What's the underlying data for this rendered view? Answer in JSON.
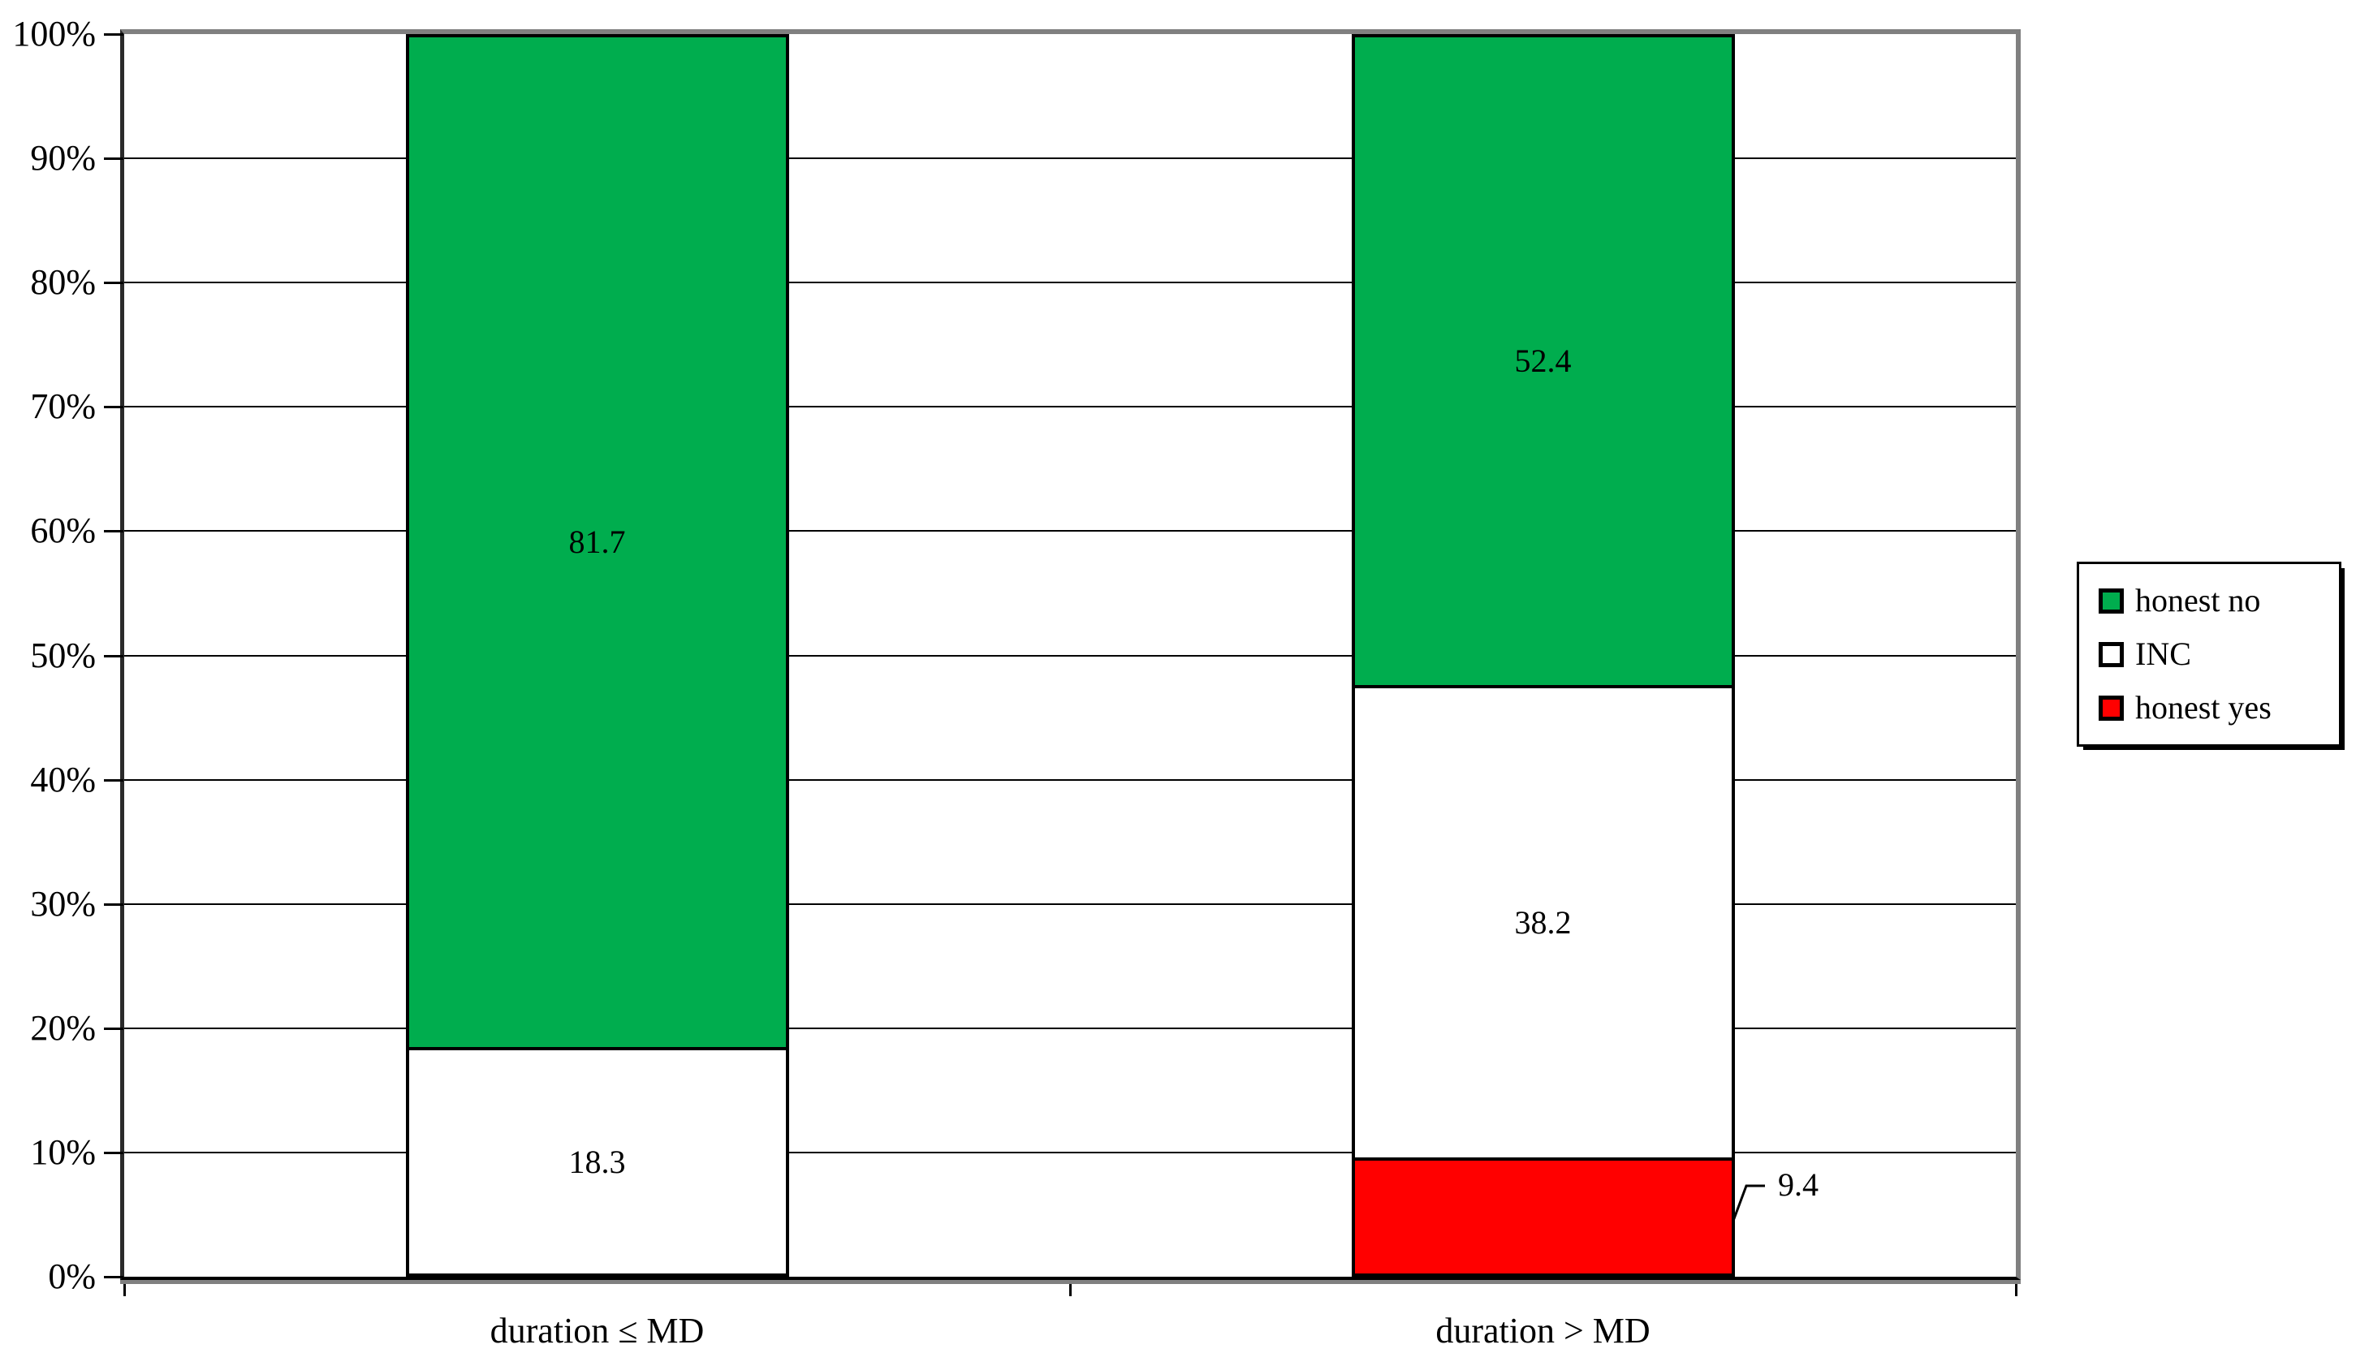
{
  "chart_data": {
    "type": "bar",
    "subtype": "100% stacked column",
    "categories": [
      "duration ≤ MD",
      "duration > MD"
    ],
    "series": [
      {
        "name": "honest no",
        "color": "#00AD4E",
        "values": [
          81.7,
          52.4
        ],
        "data_labels": [
          "81.7",
          "52.4"
        ]
      },
      {
        "name": "INC",
        "color": "#FFFFFF",
        "values": [
          18.3,
          38.2
        ],
        "data_labels": [
          "18.3",
          "38.2"
        ]
      },
      {
        "name": "honest yes",
        "color": "#FF0000",
        "values": [
          0,
          9.4
        ],
        "data_labels": [
          null,
          null
        ]
      }
    ],
    "stacking_order_bottom_to_top": [
      "honest yes",
      "INC",
      "honest no"
    ],
    "y_axis": {
      "min": 0,
      "max": 100,
      "step": 10,
      "grid": true,
      "tick_labels": [
        "0%",
        "10%",
        "20%",
        "30%",
        "40%",
        "50%",
        "60%",
        "70%",
        "80%",
        "90%",
        "100%"
      ]
    },
    "x_axis": {
      "tick_marks_between_categories": true
    },
    "legend": {
      "position": "right",
      "entries": [
        "honest no",
        "INC",
        "honest yes"
      ]
    },
    "callout": {
      "text": "9.4",
      "series": "honest yes",
      "category": "duration > MD",
      "placement": "outside-right"
    }
  },
  "colors": {
    "background": "#FFFFFF",
    "gridline": "#000000",
    "plot_border_gray": "#808080",
    "axis_black": "#000000",
    "bar_border": "#000000",
    "honest_no_green": "#00AD4E",
    "inc_white": "#FFFFFF",
    "honest_yes_red": "#FF0000"
  }
}
